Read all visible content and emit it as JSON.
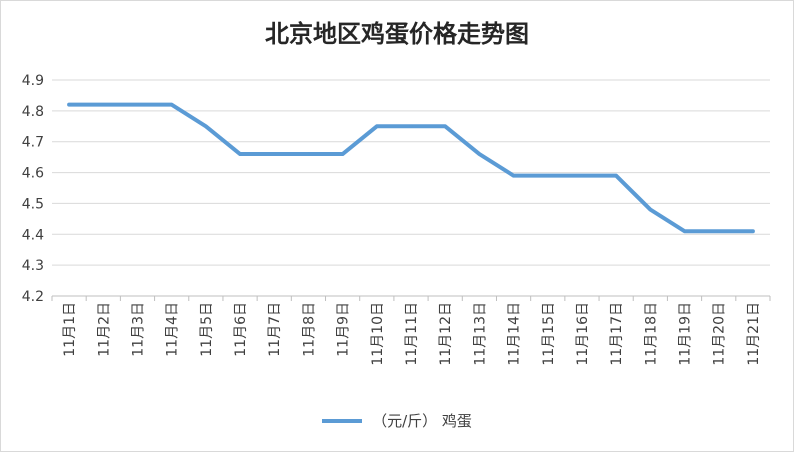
{
  "chart_data": {
    "type": "line",
    "title": "北京地区鸡蛋价格走势图",
    "categories": [
      "11月1日",
      "11月2日",
      "11月3日",
      "11月4日",
      "11月5日",
      "11月6日",
      "11月7日",
      "11月8日",
      "11月9日",
      "11月10日",
      "11月11日",
      "11月12日",
      "11月13日",
      "11月14日",
      "11月15日",
      "11月16日",
      "11月17日",
      "11月18日",
      "11月19日",
      "11月20日",
      "11月21日"
    ],
    "series": [
      {
        "name": "（元/斤） 鸡蛋",
        "values": [
          4.82,
          4.82,
          4.82,
          4.82,
          4.75,
          4.66,
          4.66,
          4.66,
          4.66,
          4.75,
          4.75,
          4.75,
          4.66,
          4.59,
          4.59,
          4.59,
          4.59,
          4.48,
          4.41,
          4.41,
          4.41
        ]
      }
    ],
    "ylim": [
      4.2,
      4.9
    ],
    "yticks": [
      "4.2",
      "4.3",
      "4.4",
      "4.5",
      "4.6",
      "4.7",
      "4.8",
      "4.9"
    ],
    "grid": true,
    "legend_position": "bottom",
    "colors": {
      "line": "#5b9bd5",
      "grid": "#d9d9d9",
      "axis": "#bfbfbf",
      "text": "#404040"
    }
  }
}
